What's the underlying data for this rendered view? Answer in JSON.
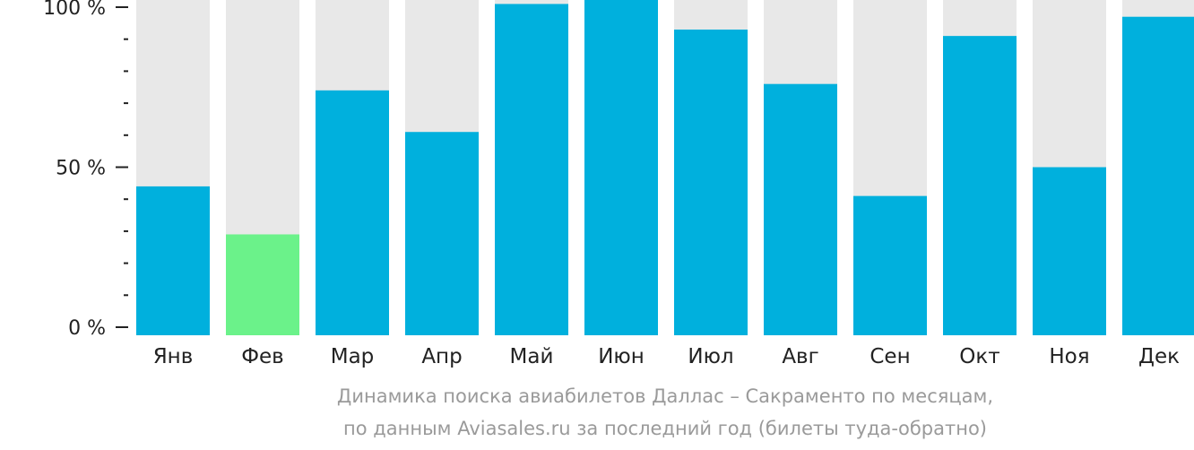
{
  "chart_data": {
    "type": "bar",
    "categories": [
      "Янв",
      "Фев",
      "Мар",
      "Апр",
      "Май",
      "Июн",
      "Июл",
      "Авг",
      "Сен",
      "Окт",
      "Ноя",
      "Дек"
    ],
    "values": [
      44,
      29,
      74,
      61,
      101,
      104,
      93,
      76,
      41,
      91,
      50,
      97
    ],
    "ylim": [
      0,
      100
    ],
    "yticks": [
      {
        "value": 100,
        "label": "100 %"
      },
      {
        "value": 50,
        "label": "50 %"
      },
      {
        "value": 0,
        "label": "0 %"
      }
    ],
    "minor_tick_step": 10,
    "highlight_category": "Фев",
    "grid": false,
    "legend": "none",
    "colors": {
      "bar": "#00b0dd",
      "highlight": "#6bf28a",
      "background_bar": "#e8e8e8",
      "axis": "#222222"
    }
  },
  "caption": {
    "line1": "Динамика поиска авиабилетов Даллас – Сакраменто по месяцам,",
    "line2": "по данным Aviasales.ru за последний год (билеты туда-обратно)"
  }
}
